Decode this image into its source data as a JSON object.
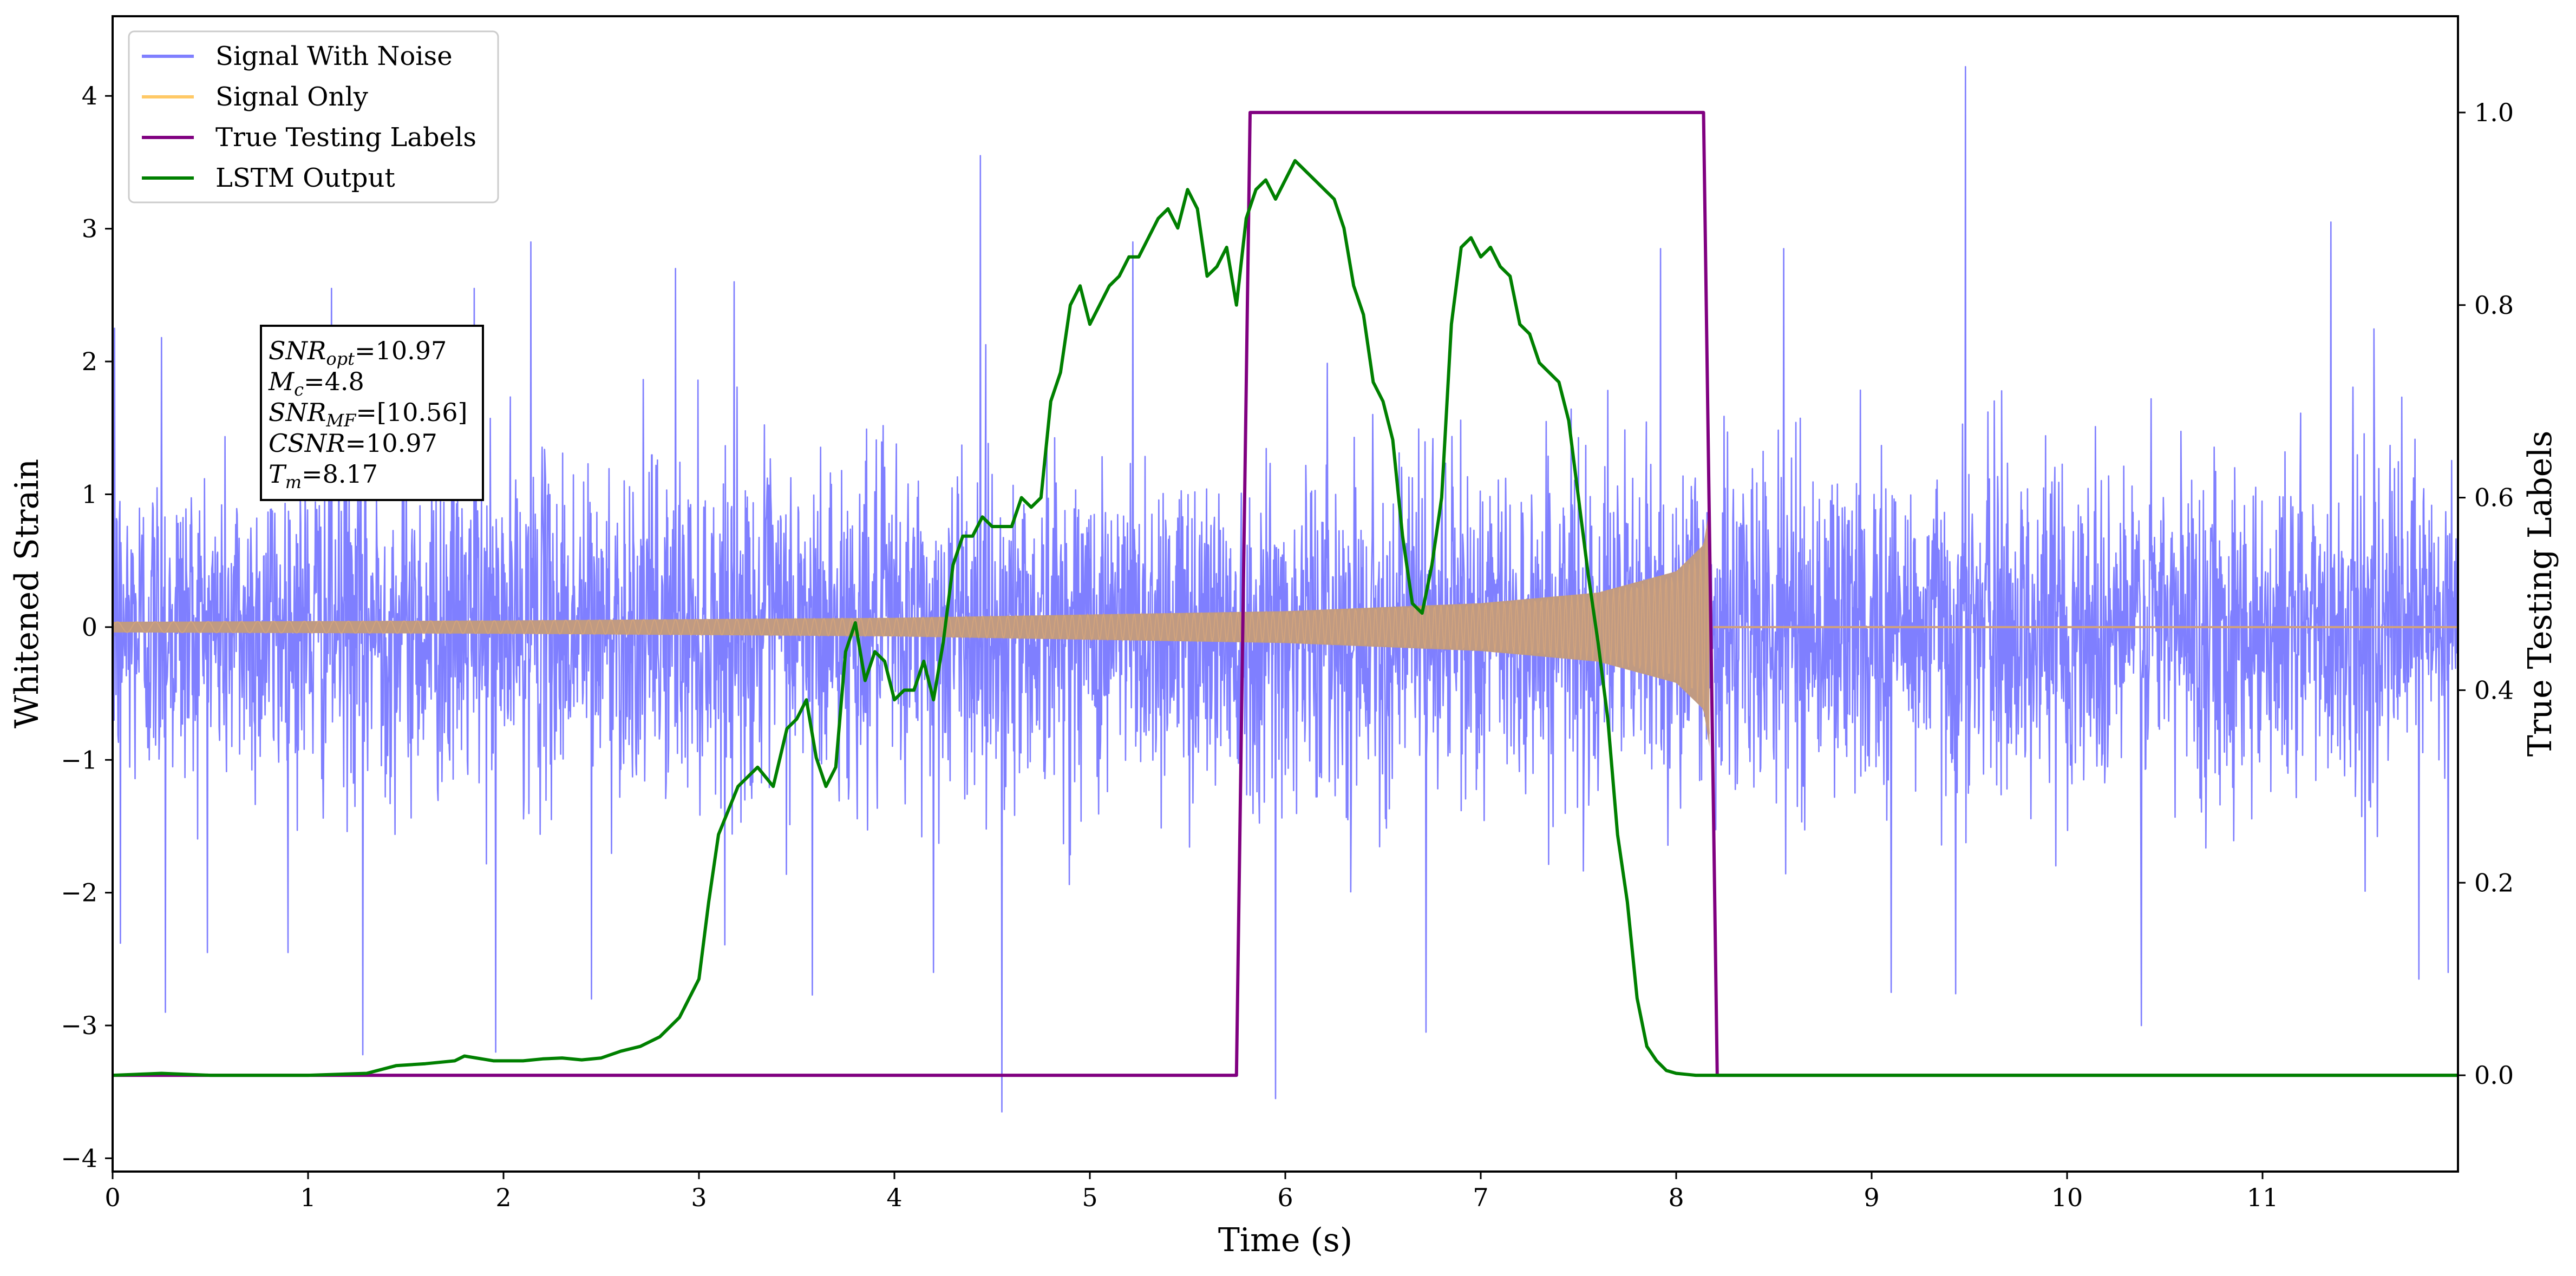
{
  "chart_data": {
    "type": "line",
    "title": "",
    "xlabel": "Time (s)",
    "ylabel": "Whitened Strain",
    "y2label": "True Testing Labels",
    "xlim": [
      0,
      12
    ],
    "ylim": [
      -4.1,
      4.6
    ],
    "y2lim": [
      -0.1,
      1.1
    ],
    "xticks": [
      "0",
      "1",
      "2",
      "3",
      "4",
      "5",
      "6",
      "7",
      "8",
      "9",
      "10",
      "11"
    ],
    "yticks": [
      "4",
      "3",
      "2",
      "1",
      "0",
      "−1",
      "−2",
      "−3",
      "−4"
    ],
    "y2ticks": [
      "1.0",
      "0.8",
      "0.6",
      "0.4",
      "0.2",
      "0.0"
    ],
    "grid": false,
    "legend_position": "top-left",
    "series": [
      {
        "name": "Signal With Noise",
        "color": "#7f7fff",
        "axis": "left",
        "kind": "noise",
        "sample_rate_hz": 400,
        "std": 0.62,
        "spikes": [
          {
            "x": 0.01,
            "y": 2.25
          },
          {
            "x": 0.04,
            "y": -2.38
          },
          {
            "x": 0.25,
            "y": 2.18
          },
          {
            "x": 0.27,
            "y": -2.9
          },
          {
            "x": 1.12,
            "y": 2.55
          },
          {
            "x": 1.28,
            "y": -3.22
          },
          {
            "x": 1.85,
            "y": 2.55
          },
          {
            "x": 1.96,
            "y": -3.2
          },
          {
            "x": 2.14,
            "y": 2.9
          },
          {
            "x": 2.45,
            "y": -2.8
          },
          {
            "x": 2.88,
            "y": 2.7
          },
          {
            "x": 3.18,
            "y": 2.6
          },
          {
            "x": 3.58,
            "y": -2.77
          },
          {
            "x": 4.2,
            "y": -2.6
          },
          {
            "x": 4.44,
            "y": 3.55
          },
          {
            "x": 4.55,
            "y": -3.65
          },
          {
            "x": 5.22,
            "y": 2.9
          },
          {
            "x": 5.95,
            "y": -3.55
          },
          {
            "x": 6.72,
            "y": -3.05
          },
          {
            "x": 7.92,
            "y": 2.85
          },
          {
            "x": 8.55,
            "y": 2.85
          },
          {
            "x": 9.1,
            "y": -2.75
          },
          {
            "x": 9.43,
            "y": -2.76
          },
          {
            "x": 9.48,
            "y": 4.22
          },
          {
            "x": 10.38,
            "y": -3.0
          },
          {
            "x": 11.35,
            "y": 3.05
          },
          {
            "x": 11.8,
            "y": -2.65
          },
          {
            "x": 11.95,
            "y": -2.6
          }
        ]
      },
      {
        "name": "Signal Only",
        "color": "#ffc966",
        "axis": "left",
        "kind": "chirp",
        "x_end": 8.17,
        "amplitude": [
          [
            0,
            0.04
          ],
          [
            2,
            0.05
          ],
          [
            4,
            0.07
          ],
          [
            6,
            0.12
          ],
          [
            7,
            0.18
          ],
          [
            7.6,
            0.26
          ],
          [
            8.0,
            0.42
          ],
          [
            8.14,
            0.62
          ],
          [
            8.17,
            0.9
          ]
        ]
      },
      {
        "name": "True Testing Labels",
        "color": "#800080",
        "axis": "right",
        "x": [
          0,
          5.75,
          5.82,
          8.14,
          8.21,
          12
        ],
        "y": [
          0,
          0,
          1,
          1,
          0,
          0
        ]
      },
      {
        "name": "LSTM Output",
        "color": "#008000",
        "axis": "right",
        "x": [
          0,
          0.25,
          0.5,
          1.0,
          1.3,
          1.45,
          1.6,
          1.75,
          1.8,
          1.95,
          2.1,
          2.2,
          2.3,
          2.4,
          2.5,
          2.6,
          2.7,
          2.8,
          2.9,
          3.0,
          3.05,
          3.1,
          3.2,
          3.3,
          3.38,
          3.45,
          3.5,
          3.55,
          3.6,
          3.65,
          3.7,
          3.75,
          3.8,
          3.85,
          3.9,
          3.95,
          4.0,
          4.05,
          4.1,
          4.15,
          4.2,
          4.25,
          4.3,
          4.35,
          4.4,
          4.45,
          4.5,
          4.55,
          4.6,
          4.65,
          4.7,
          4.75,
          4.8,
          4.85,
          4.9,
          4.95,
          5.0,
          5.05,
          5.1,
          5.15,
          5.2,
          5.25,
          5.3,
          5.35,
          5.4,
          5.45,
          5.5,
          5.55,
          5.6,
          5.65,
          5.7,
          5.75,
          5.8,
          5.85,
          5.9,
          5.95,
          6.0,
          6.05,
          6.1,
          6.15,
          6.2,
          6.25,
          6.3,
          6.35,
          6.4,
          6.45,
          6.5,
          6.55,
          6.6,
          6.65,
          6.7,
          6.75,
          6.8,
          6.85,
          6.9,
          6.95,
          7.0,
          7.05,
          7.1,
          7.15,
          7.2,
          7.25,
          7.3,
          7.35,
          7.4,
          7.45,
          7.5,
          7.55,
          7.6,
          7.65,
          7.7,
          7.75,
          7.8,
          7.85,
          7.9,
          7.95,
          8.0,
          8.05,
          8.1,
          8.15,
          8.2,
          8.3,
          8.5,
          9,
          12
        ],
        "y": [
          0.0,
          0.002,
          0.0,
          0.0,
          0.002,
          0.01,
          0.012,
          0.015,
          0.02,
          0.015,
          0.015,
          0.017,
          0.018,
          0.016,
          0.018,
          0.025,
          0.03,
          0.04,
          0.06,
          0.1,
          0.18,
          0.25,
          0.3,
          0.32,
          0.3,
          0.36,
          0.37,
          0.39,
          0.33,
          0.3,
          0.32,
          0.44,
          0.47,
          0.41,
          0.44,
          0.43,
          0.39,
          0.4,
          0.4,
          0.43,
          0.39,
          0.45,
          0.53,
          0.56,
          0.56,
          0.58,
          0.57,
          0.57,
          0.57,
          0.6,
          0.59,
          0.6,
          0.7,
          0.73,
          0.8,
          0.82,
          0.78,
          0.8,
          0.82,
          0.83,
          0.85,
          0.85,
          0.87,
          0.89,
          0.9,
          0.88,
          0.92,
          0.9,
          0.83,
          0.84,
          0.86,
          0.8,
          0.89,
          0.92,
          0.93,
          0.91,
          0.93,
          0.95,
          0.94,
          0.93,
          0.92,
          0.91,
          0.88,
          0.82,
          0.79,
          0.72,
          0.7,
          0.66,
          0.56,
          0.49,
          0.48,
          0.53,
          0.6,
          0.78,
          0.86,
          0.87,
          0.85,
          0.86,
          0.84,
          0.83,
          0.78,
          0.77,
          0.74,
          0.73,
          0.72,
          0.68,
          0.6,
          0.52,
          0.45,
          0.37,
          0.25,
          0.18,
          0.08,
          0.03,
          0.015,
          0.005,
          0.002,
          0.001,
          0.0,
          0.0,
          0.0,
          0.0,
          0.0,
          0.0,
          0.0
        ]
      }
    ],
    "annotation": {
      "lines": [
        {
          "sym": "SNR",
          "sub": "opt",
          "val": "=10.97"
        },
        {
          "sym": "M",
          "sub": "c",
          "val": "=4.8"
        },
        {
          "sym": "SNR",
          "sub": "MF",
          "val": "=[10.56]"
        },
        {
          "sym": "CSNR",
          "sub": "",
          "val": "=10.97"
        },
        {
          "sym": "T",
          "sub": "m",
          "val": "=8.17"
        }
      ]
    }
  }
}
